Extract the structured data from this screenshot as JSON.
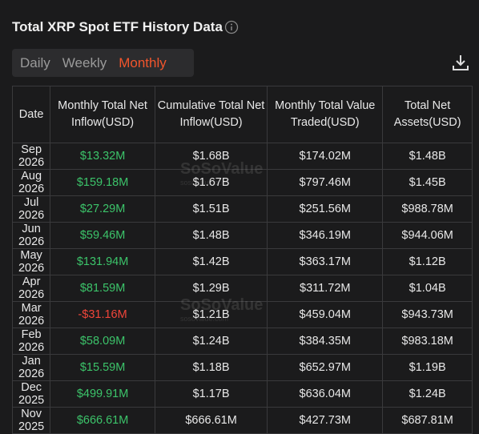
{
  "header": {
    "title": "Total XRP Spot ETF History Data"
  },
  "tabs": {
    "items": [
      "Daily",
      "Weekly",
      "Monthly"
    ],
    "active": 2
  },
  "watermark": {
    "name": "SoSoValue",
    "url": "sosovalue.com"
  },
  "table": {
    "columns": [
      "Date",
      "Monthly Total Net Inflow(USD)",
      "Cumulative Total Net Inflow(USD)",
      "Monthly Total Value Traded(USD)",
      "Total Net Assets(USD)"
    ],
    "rows": [
      [
        "Sep 2026",
        "$13.32M",
        "$1.68B",
        "$174.02M",
        "$1.48B"
      ],
      [
        "Aug 2026",
        "$159.18M",
        "$1.67B",
        "$797.46M",
        "$1.45B"
      ],
      [
        "Jul 2026",
        "$27.29M",
        "$1.51B",
        "$251.56M",
        "$988.78M"
      ],
      [
        "Jun 2026",
        "$59.46M",
        "$1.48B",
        "$346.19M",
        "$944.06M"
      ],
      [
        "May 2026",
        "$131.94M",
        "$1.42B",
        "$363.17M",
        "$1.12B"
      ],
      [
        "Apr 2026",
        "$81.59M",
        "$1.29B",
        "$311.72M",
        "$1.04B"
      ],
      [
        "Mar 2026",
        "-$31.16M",
        "$1.21B",
        "$459.04M",
        "$943.73M"
      ],
      [
        "Feb 2026",
        "$58.09M",
        "$1.24B",
        "$384.35M",
        "$983.18M"
      ],
      [
        "Jan 2026",
        "$15.59M",
        "$1.18B",
        "$652.97M",
        "$1.19B"
      ],
      [
        "Dec 2025",
        "$499.91M",
        "$1.17B",
        "$636.04M",
        "$1.24B"
      ],
      [
        "Nov 2025",
        "$666.61M",
        "$666.61M",
        "$427.73M",
        "$687.81M"
      ]
    ]
  }
}
